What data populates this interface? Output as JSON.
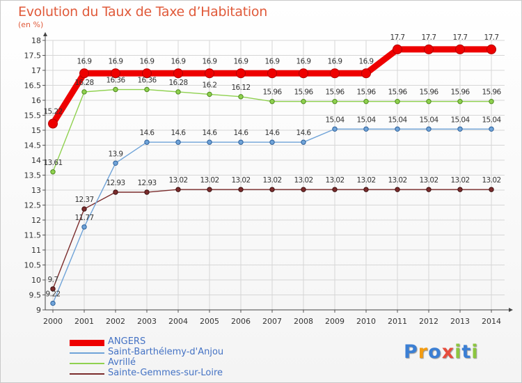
{
  "title": "Evolution du Taux de Taxe d’Habitation",
  "subtitle": "(en %)",
  "logo": {
    "letters": [
      "P",
      "r",
      "o",
      "x",
      "i",
      "t",
      "i"
    ],
    "colors": [
      "#3b7fd4",
      "#f39c12",
      "#3b7fd4",
      "#e74c3c",
      "#8cc63f",
      "#3b7fd4",
      "#8cc63f"
    ]
  },
  "chart_data": {
    "type": "line",
    "title": "Evolution du Taux de Taxe d’Habitation",
    "ylabel": "(en %)",
    "xlabel": "",
    "ylim": [
      9,
      18
    ],
    "ytick_step": 0.5,
    "grid": true,
    "legend_position": "bottom-left",
    "x": [
      "2000",
      "2001",
      "2002",
      "2003",
      "2004",
      "2005",
      "2006",
      "2007",
      "2008",
      "2009",
      "2010",
      "2011",
      "2012",
      "2013",
      "2014"
    ],
    "series": [
      {
        "name": "ANGERS",
        "color": "#ee0000",
        "values": [
          15.22,
          16.9,
          16.9,
          16.9,
          16.9,
          16.9,
          16.9,
          16.9,
          16.9,
          16.9,
          16.9,
          17.7,
          17.7,
          17.7,
          17.7
        ],
        "labels": [
          "15.22",
          "16.9",
          "16.9",
          "16.9",
          "16.9",
          "16.9",
          "16.9",
          "16.9",
          "16.9",
          "16.9",
          "16.9",
          "17.7",
          "17.7",
          "17.7",
          "17.7"
        ]
      },
      {
        "name": "Saint-Barthélemy-d'Anjou",
        "color": "#6fa3d8",
        "values": [
          9.22,
          11.77,
          13.9,
          14.6,
          14.6,
          14.6,
          14.6,
          14.6,
          14.6,
          15.04,
          15.04,
          15.04,
          15.04,
          15.04,
          15.04
        ],
        "labels": [
          "9.22",
          "11.77",
          "13.9",
          "14.6",
          "14.6",
          "14.6",
          "14.6",
          "14.6",
          "14.6",
          "15.04",
          "15.04",
          "15.04",
          "15.04",
          "15.04",
          "15.04"
        ]
      },
      {
        "name": "Avrillé",
        "color": "#8fd14f",
        "values": [
          13.61,
          16.28,
          16.36,
          16.36,
          16.28,
          16.2,
          16.12,
          15.96,
          15.96,
          15.96,
          15.96,
          15.96,
          15.96,
          15.96,
          15.96
        ],
        "labels": [
          "13.61",
          "16.28",
          "16.36",
          "16.36",
          "16.28",
          "16.2",
          "16.12",
          "15.96",
          "15.96",
          "15.96",
          "15.96",
          "15.96",
          "15.96",
          "15.96",
          "15.96"
        ]
      },
      {
        "name": "Sainte-Gemmes-sur-Loire",
        "color": "#7b2c2c",
        "values": [
          9.7,
          12.37,
          12.93,
          12.93,
          13.02,
          13.02,
          13.02,
          13.02,
          13.02,
          13.02,
          13.02,
          13.02,
          13.02,
          13.02,
          13.02
        ],
        "labels": [
          "9.7",
          "12.37",
          "12.93",
          "12.93",
          "13.02",
          "13.02",
          "13.02",
          "13.02",
          "13.02",
          "13.02",
          "13.02",
          "13.02",
          "13.02",
          "13.02",
          "13.02"
        ]
      }
    ]
  }
}
